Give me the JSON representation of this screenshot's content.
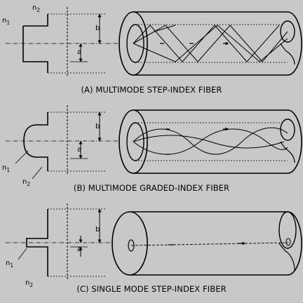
{
  "colors": {
    "background": "#000000",
    "panel": "#c8c8c8",
    "fiber": "#c8c8c8",
    "ink": "#000000"
  },
  "panels": [
    {
      "caption": "(A) MULTIMODE STEP-INDEX FIBER",
      "profile": "step",
      "labels": {
        "n1": "n",
        "n1_sub": "1",
        "n2": "n",
        "n2_sub": "2",
        "b": "b",
        "a": "a"
      }
    },
    {
      "caption": "(B) MULTIMODE GRADED-INDEX FIBER",
      "profile": "graded",
      "labels": {
        "n1": "n",
        "n1_sub": "1",
        "n2": "n",
        "n2_sub": "2",
        "b": "b",
        "a": "a"
      }
    },
    {
      "caption": "(C) SINGLE MODE STEP-INDEX FIBER",
      "profile": "single",
      "labels": {
        "n1": "n",
        "n1_sub": "1",
        "n2": "n",
        "n2_sub": "2",
        "b": "b",
        "a": "a"
      }
    }
  ]
}
